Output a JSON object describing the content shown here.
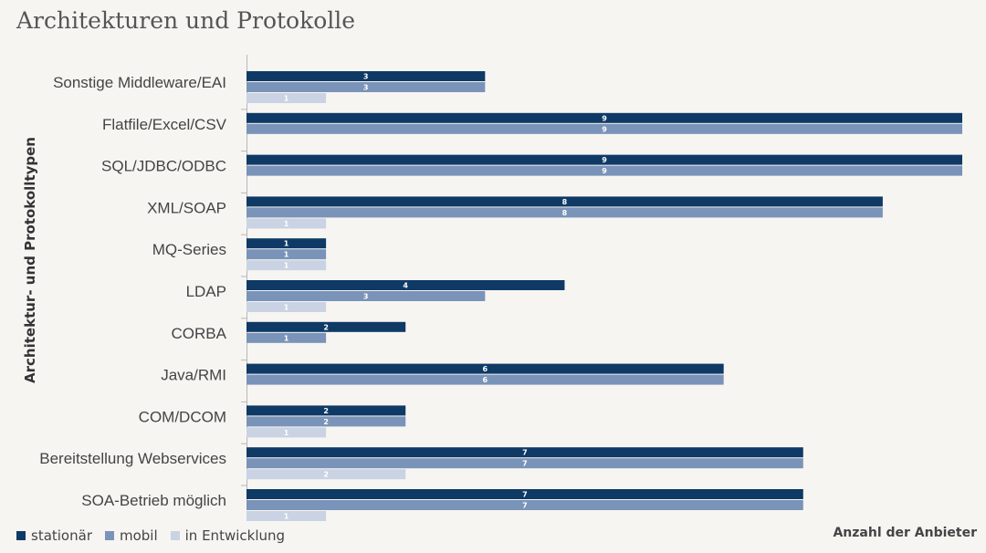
{
  "chart_data": {
    "type": "bar",
    "orientation": "horizontal",
    "title": "Architekturen und Protokolle",
    "xlabel": "Anzahl der Anbieter",
    "ylabel": "Architektur- und Protokolltypen",
    "xlim": [
      0,
      9
    ],
    "grid": false,
    "legend_position": "bottom-left",
    "categories": [
      "Sonstige Middleware/EAI",
      "Flatfile/Excel/CSV",
      "SQL/JDBC/ODBC",
      "XML/SOAP",
      "MQ-Series",
      "LDAP",
      "CORBA",
      "Java/RMI",
      "COM/DCOM",
      "Bereitstellung Webservices",
      "SOA-Betrieb möglich"
    ],
    "series": [
      {
        "name": "stationär",
        "color": "#0f3a66",
        "values": [
          3,
          9,
          9,
          8,
          1,
          4,
          2,
          6,
          2,
          7,
          7
        ]
      },
      {
        "name": "mobil",
        "color": "#7a93b8",
        "values": [
          3,
          9,
          9,
          8,
          1,
          3,
          1,
          6,
          2,
          7,
          7
        ]
      },
      {
        "name": "in Entwicklung",
        "color": "#c9d3e3",
        "values": [
          1,
          null,
          null,
          1,
          1,
          1,
          null,
          null,
          1,
          2,
          1
        ]
      }
    ]
  }
}
